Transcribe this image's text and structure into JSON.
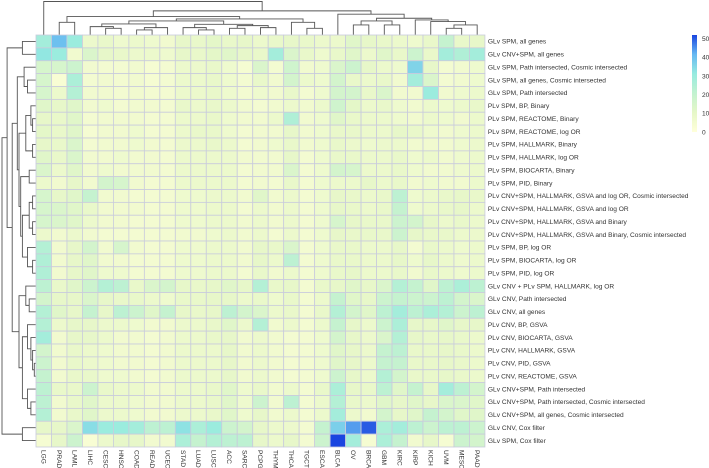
{
  "chart_data": {
    "type": "heatmap",
    "title": "",
    "xlabel": "",
    "ylabel": "",
    "columns": [
      "LGG",
      "PRAD",
      "LAML",
      "LIHC",
      "CESC",
      "HNSC",
      "COAD",
      "READ",
      "UCEC",
      "STAD",
      "LUAD",
      "LUSC",
      "ACC",
      "SARC",
      "PCPG",
      "THYM",
      "THCA",
      "TGCT",
      "ESCA",
      "BLCA",
      "OV",
      "BRCA",
      "GBM",
      "KIRC",
      "KIRP",
      "KICH",
      "UVM",
      "MESO",
      "PAAD"
    ],
    "rows": [
      "GLv SPM, all genes",
      "GLv CNV+SPM, all genes",
      "GLv SPM, Path intersected, Cosmic intersected",
      "GLv SPM, all genes, Cosmic intersected",
      "GLv SPM, Path intersected",
      "PLv SPM, BP, Binary",
      "PLv SPM, REACTOME, Binary",
      "PLv SPM, REACTOME, log OR",
      "PLv SPM, HALLMARK, Binary",
      "PLv SPM, HALLMARK, log OR",
      "PLv SPM, BIOCARTA, Binary",
      "PLv SPM, PID, Binary",
      "PLv CNV+SPM, HALLMARK, GSVA and log OR, Cosmic intersected",
      "PLv CNV+SPM, HALLMARK, GSVA and log OR",
      "PLv CNV+SPM, HALLMARK, GSVA and Binary",
      "PLv CNV+SPM, HALLMARK, GSVA and Binary, Cosmic intersected",
      "PLv SPM, BP, log OR",
      "PLv SPM, BIOCARTA, log OR",
      "PLv SPM, PID, log OR",
      "GLv CNV + PLv SPM, HALLMARK, log OR",
      "GLv CNV, Path intersected",
      "GLv CNV, all genes",
      "PLv CNV, BP, GSVA",
      "PLv CNV, BIOCARTA, GSVA",
      "PLv CNV, HALLMARK, GSVA",
      "PLv CNV, PID, GSVA",
      "PLv CNV, REACTOME, GSVA",
      "GLv CNV+SPM, Path intersected",
      "GLv CNV+SPM, Path intersected, Cosmic intersected",
      "GLv CNV+SPM, all genes, Cosmic intersected",
      "GLv CNV, Cox filter",
      "GLv SPM, Cox filter"
    ],
    "values": [
      [
        28,
        40,
        30,
        8,
        9,
        7,
        8,
        7,
        6,
        10,
        9,
        11,
        9,
        10,
        8,
        9,
        10,
        9,
        8,
        8,
        12,
        10,
        9,
        8,
        7,
        9,
        20,
        9,
        10
      ],
      [
        32,
        30,
        6,
        14,
        10,
        9,
        8,
        8,
        7,
        10,
        9,
        11,
        12,
        10,
        9,
        28,
        14,
        9,
        7,
        9,
        12,
        8,
        12,
        9,
        18,
        9,
        28,
        25,
        28
      ],
      [
        15,
        15,
        18,
        6,
        5,
        5,
        6,
        4,
        5,
        8,
        8,
        9,
        7,
        4,
        14,
        5,
        17,
        6,
        7,
        14,
        18,
        10,
        8,
        7,
        36,
        10,
        5,
        6,
        7
      ],
      [
        15,
        3,
        26,
        5,
        6,
        5,
        6,
        4,
        5,
        8,
        8,
        9,
        7,
        5,
        9,
        6,
        16,
        8,
        7,
        16,
        9,
        8,
        9,
        6,
        28,
        14,
        5,
        6,
        7
      ],
      [
        15,
        8,
        24,
        6,
        6,
        5,
        6,
        5,
        5,
        8,
        8,
        9,
        7,
        5,
        7,
        6,
        9,
        5,
        7,
        16,
        16,
        9,
        14,
        6,
        6,
        30,
        6,
        7,
        8
      ],
      [
        12,
        10,
        12,
        6,
        7,
        5,
        6,
        6,
        5,
        9,
        8,
        9,
        8,
        6,
        5,
        6,
        8,
        6,
        8,
        17,
        11,
        8,
        9,
        7,
        6,
        8,
        7,
        8,
        9
      ],
      [
        10,
        9,
        12,
        5,
        6,
        6,
        6,
        5,
        5,
        8,
        8,
        9,
        7,
        6,
        6,
        8,
        25,
        6,
        7,
        12,
        9,
        8,
        8,
        7,
        6,
        8,
        7,
        6,
        8
      ],
      [
        11,
        9,
        12,
        4,
        6,
        6,
        7,
        5,
        5,
        8,
        9,
        9,
        7,
        5,
        6,
        6,
        10,
        6,
        7,
        9,
        9,
        8,
        8,
        10,
        9,
        7,
        6,
        7,
        8
      ],
      [
        10,
        9,
        14,
        5,
        6,
        6,
        7,
        6,
        5,
        8,
        8,
        9,
        8,
        5,
        6,
        7,
        9,
        6,
        7,
        9,
        8,
        7,
        8,
        8,
        6,
        6,
        6,
        7,
        8
      ],
      [
        12,
        9,
        14,
        6,
        6,
        7,
        6,
        6,
        5,
        8,
        8,
        8,
        8,
        6,
        6,
        6,
        10,
        5,
        7,
        9,
        9,
        8,
        8,
        9,
        7,
        8,
        6,
        7,
        8
      ],
      [
        14,
        8,
        12,
        6,
        7,
        6,
        6,
        6,
        5,
        8,
        8,
        8,
        8,
        5,
        6,
        6,
        14,
        5,
        7,
        16,
        15,
        8,
        8,
        9,
        7,
        6,
        6,
        7,
        8
      ],
      [
        8,
        6,
        10,
        6,
        16,
        15,
        6,
        5,
        5,
        8,
        8,
        8,
        8,
        5,
        6,
        5,
        9,
        5,
        7,
        8,
        8,
        10,
        8,
        9,
        6,
        7,
        6,
        6,
        8
      ],
      [
        15,
        10,
        12,
        20,
        6,
        6,
        5,
        5,
        5,
        7,
        7,
        8,
        8,
        6,
        12,
        6,
        8,
        5,
        7,
        10,
        9,
        8,
        9,
        22,
        7,
        8,
        9,
        10,
        9
      ],
      [
        15,
        14,
        12,
        9,
        6,
        6,
        6,
        5,
        5,
        7,
        7,
        8,
        8,
        5,
        8,
        6,
        8,
        5,
        7,
        10,
        9,
        8,
        9,
        20,
        7,
        8,
        9,
        10,
        8
      ],
      [
        15,
        14,
        12,
        8,
        6,
        6,
        5,
        5,
        5,
        7,
        7,
        8,
        8,
        6,
        8,
        6,
        8,
        5,
        7,
        15,
        10,
        9,
        9,
        18,
        16,
        10,
        8,
        9,
        8
      ],
      [
        8,
        6,
        8,
        6,
        5,
        5,
        5,
        5,
        5,
        6,
        6,
        7,
        8,
        6,
        8,
        5,
        8,
        5,
        7,
        10,
        9,
        9,
        9,
        18,
        10,
        9,
        9,
        8,
        8
      ],
      [
        24,
        6,
        10,
        16,
        6,
        15,
        6,
        5,
        5,
        7,
        7,
        8,
        8,
        6,
        10,
        9,
        14,
        5,
        7,
        9,
        9,
        8,
        8,
        10,
        5,
        9,
        8,
        7,
        8
      ],
      [
        25,
        6,
        10,
        12,
        6,
        6,
        5,
        5,
        5,
        7,
        7,
        8,
        8,
        6,
        10,
        8,
        22,
        5,
        7,
        9,
        9,
        8,
        8,
        10,
        7,
        10,
        8,
        7,
        8
      ],
      [
        25,
        6,
        10,
        12,
        7,
        7,
        5,
        5,
        5,
        7,
        7,
        8,
        8,
        5,
        9,
        6,
        8,
        5,
        7,
        9,
        10,
        8,
        8,
        9,
        6,
        9,
        8,
        7,
        8
      ],
      [
        22,
        9,
        12,
        18,
        24,
        22,
        9,
        14,
        16,
        10,
        9,
        10,
        12,
        10,
        24,
        9,
        10,
        5,
        9,
        10,
        12,
        10,
        14,
        24,
        20,
        12,
        22,
        26,
        22
      ],
      [
        16,
        10,
        10,
        14,
        10,
        9,
        9,
        8,
        7,
        9,
        9,
        10,
        10,
        8,
        9,
        7,
        9,
        5,
        8,
        20,
        12,
        10,
        18,
        20,
        18,
        18,
        22,
        16,
        14
      ],
      [
        24,
        12,
        10,
        20,
        10,
        22,
        18,
        12,
        20,
        10,
        9,
        10,
        22,
        16,
        14,
        8,
        9,
        5,
        9,
        24,
        16,
        12,
        22,
        28,
        22,
        26,
        24,
        18,
        22
      ],
      [
        24,
        8,
        10,
        10,
        8,
        8,
        7,
        6,
        6,
        8,
        8,
        9,
        12,
        8,
        24,
        6,
        8,
        5,
        8,
        20,
        10,
        8,
        18,
        26,
        10,
        10,
        12,
        10,
        10
      ],
      [
        28,
        6,
        10,
        10,
        8,
        6,
        6,
        5,
        6,
        8,
        8,
        9,
        10,
        6,
        8,
        6,
        5,
        5,
        7,
        16,
        10,
        8,
        14,
        24,
        10,
        9,
        10,
        9,
        8
      ],
      [
        16,
        6,
        9,
        8,
        7,
        6,
        6,
        5,
        6,
        8,
        8,
        8,
        10,
        6,
        8,
        6,
        5,
        5,
        7,
        12,
        10,
        8,
        20,
        22,
        9,
        9,
        10,
        9,
        8
      ],
      [
        18,
        6,
        9,
        8,
        7,
        6,
        6,
        5,
        6,
        8,
        8,
        8,
        10,
        6,
        8,
        6,
        5,
        5,
        7,
        12,
        10,
        8,
        20,
        20,
        9,
        9,
        10,
        9,
        8
      ],
      [
        20,
        6,
        9,
        9,
        7,
        7,
        6,
        5,
        6,
        8,
        8,
        8,
        10,
        6,
        8,
        6,
        5,
        5,
        7,
        18,
        10,
        8,
        24,
        16,
        9,
        9,
        10,
        9,
        8
      ],
      [
        22,
        9,
        9,
        18,
        9,
        8,
        8,
        6,
        6,
        8,
        8,
        9,
        12,
        7,
        9,
        6,
        8,
        5,
        9,
        26,
        10,
        9,
        22,
        12,
        20,
        10,
        28,
        22,
        16
      ],
      [
        22,
        6,
        9,
        12,
        8,
        8,
        7,
        6,
        6,
        8,
        8,
        9,
        12,
        7,
        18,
        6,
        22,
        5,
        8,
        24,
        9,
        8,
        12,
        10,
        12,
        10,
        14,
        14,
        12
      ],
      [
        24,
        6,
        9,
        12,
        8,
        8,
        7,
        6,
        6,
        8,
        8,
        9,
        12,
        7,
        10,
        6,
        8,
        5,
        8,
        28,
        8,
        6,
        16,
        10,
        12,
        20,
        16,
        12,
        12
      ],
      [
        10,
        10,
        14,
        34,
        30,
        30,
        28,
        22,
        22,
        33,
        26,
        30,
        18,
        16,
        10,
        8,
        8,
        5,
        20,
        37,
        44,
        50,
        26,
        28,
        22,
        18,
        22,
        22,
        18
      ],
      [
        4,
        10,
        18,
        3,
        8,
        10,
        10,
        6,
        6,
        26,
        20,
        24,
        22,
        22,
        10,
        8,
        10,
        5,
        18,
        52,
        28,
        4,
        26,
        20,
        6,
        10,
        4,
        18,
        16
      ]
    ],
    "colorbar": {
      "range": [
        0,
        52
      ],
      "ticks": [
        "0",
        "10",
        "20",
        "30",
        "40",
        "50"
      ],
      "colormap": "YlGnBu",
      "stops": [
        "#ffffd9",
        "#e6f7c8",
        "#c2f2d0",
        "#96ebe0",
        "#66b8f2",
        "#1a45e0"
      ]
    },
    "grid": true,
    "dendrograms": [
      "rows",
      "columns"
    ]
  }
}
